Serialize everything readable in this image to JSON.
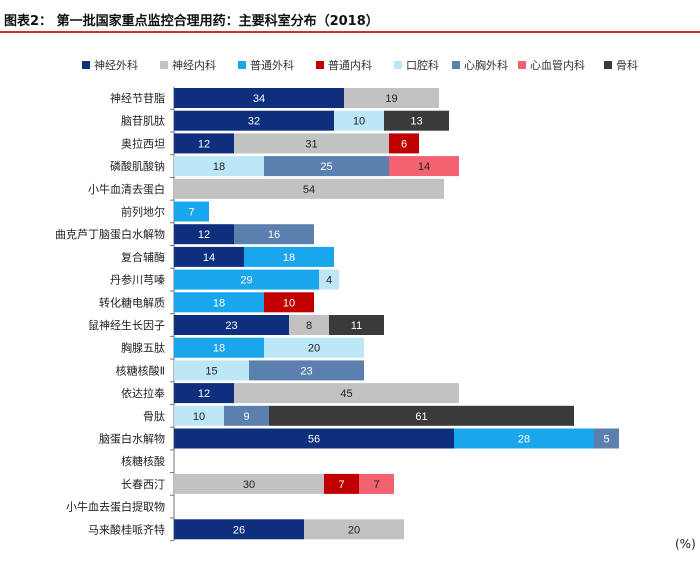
{
  "figure": {
    "title": "图表2：  第一批国家重点监控合理用药：主要科室分布（2018）",
    "unit": "(%)"
  },
  "chart_data": {
    "type": "bar",
    "orientation": "horizontal",
    "stacked": true,
    "legend_position": "top",
    "grid": false,
    "unit": "%",
    "categories": [
      "神经节苷脂",
      "脑苷肌肽",
      "奥拉西坦",
      "磷酸肌酸钠",
      "小牛血清去蛋白",
      "前列地尔",
      "曲克芦丁脑蛋白水解物",
      "复合辅酶",
      "丹参川芎嗪",
      "转化糖电解质",
      "鼠神经生长因子",
      "胸腺五肽",
      "核糖核酸Ⅱ",
      "依达拉奉",
      "骨肽",
      "脑蛋白水解物",
      "核糖核酸",
      "长春西汀",
      "小牛血去蛋白提取物",
      "马来酸桂哌齐特"
    ],
    "series": [
      {
        "name": "神经外科",
        "color": "#0d2f7e",
        "values": [
          34,
          32,
          12,
          null,
          null,
          null,
          12,
          14,
          null,
          null,
          23,
          null,
          null,
          12,
          null,
          56,
          null,
          null,
          null,
          26
        ]
      },
      {
        "name": "神经内科",
        "color": "#c2c2c2",
        "values": [
          19,
          null,
          31,
          null,
          54,
          null,
          null,
          null,
          null,
          null,
          8,
          null,
          null,
          45,
          null,
          null,
          null,
          30,
          null,
          20
        ]
      },
      {
        "name": "普通外科",
        "color": "#1aa6ec",
        "values": [
          null,
          null,
          null,
          null,
          null,
          7,
          null,
          18,
          29,
          18,
          null,
          18,
          null,
          null,
          null,
          28,
          null,
          null,
          null,
          null
        ]
      },
      {
        "name": "普通内科",
        "color": "#c00000",
        "values": [
          null,
          null,
          6,
          null,
          null,
          null,
          null,
          null,
          null,
          10,
          null,
          null,
          null,
          null,
          null,
          null,
          null,
          7,
          null,
          null
        ]
      },
      {
        "name": "口腔科",
        "color": "#bde6f7",
        "values": [
          null,
          10,
          null,
          18,
          null,
          null,
          null,
          null,
          4,
          null,
          null,
          20,
          15,
          null,
          10,
          null,
          null,
          null,
          null,
          null
        ]
      },
      {
        "name": "心胸外科",
        "color": "#5b7fae",
        "values": [
          null,
          null,
          null,
          25,
          null,
          null,
          16,
          null,
          null,
          null,
          null,
          null,
          23,
          null,
          9,
          5,
          null,
          null,
          null,
          null
        ]
      },
      {
        "name": "心血管内科",
        "color": "#f26270",
        "values": [
          null,
          null,
          null,
          14,
          null,
          null,
          null,
          null,
          null,
          null,
          null,
          null,
          null,
          null,
          null,
          null,
          null,
          7,
          null,
          null
        ]
      },
      {
        "name": "骨科",
        "color": "#3a3a3a",
        "values": [
          null,
          13,
          null,
          null,
          null,
          null,
          null,
          null,
          null,
          null,
          11,
          null,
          null,
          null,
          61,
          null,
          null,
          null,
          null,
          null
        ]
      }
    ],
    "stack_order": [
      [
        "神经外科",
        "神经内科"
      ],
      [
        "神经外科",
        "口腔科",
        "骨科"
      ],
      [
        "神经外科",
        "神经内科",
        "普通内科"
      ],
      [
        "口腔科",
        "心胸外科",
        "心血管内科"
      ],
      [
        "神经内科"
      ],
      [
        "普通外科"
      ],
      [
        "神经外科",
        "心胸外科"
      ],
      [
        "神经外科",
        "普通外科"
      ],
      [
        "普通外科",
        "口腔科"
      ],
      [
        "普通外科",
        "普通内科"
      ],
      [
        "神经外科",
        "神经内科",
        "骨科"
      ],
      [
        "普通外科",
        "口腔科"
      ],
      [
        "口腔科",
        "心胸外科"
      ],
      [
        "神经外科",
        "神经内科"
      ],
      [
        "口腔科",
        "心胸外科",
        "骨科"
      ],
      [
        "神经外科",
        "普通外科",
        "心胸外科"
      ],
      [],
      [
        "神经内科",
        "普通内科",
        "心血管内科"
      ],
      [],
      [
        "神经外科",
        "神经内科"
      ]
    ],
    "label_colors": {
      "dark": "#ffffff",
      "light": "#222222"
    }
  }
}
